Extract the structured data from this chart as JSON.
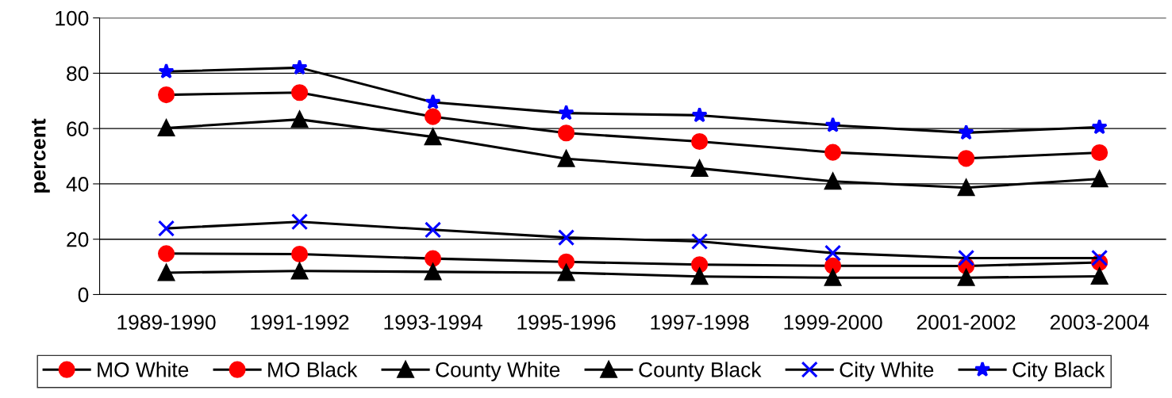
{
  "chart_data": {
    "type": "line",
    "ylabel": "percent",
    "categories": [
      "1989-1990",
      "1991-1992",
      "1993-1994",
      "1995-1996",
      "1997-1998",
      "1999-2000",
      "2001-2002",
      "2003-2004"
    ],
    "series": [
      {
        "name": "MO White",
        "color": "#ff0000",
        "marker": "circle",
        "values": [
          14.8,
          14.6,
          13.0,
          11.8,
          10.8,
          10.4,
          10.3,
          11.6
        ]
      },
      {
        "name": "MO Black",
        "color": "#ff0000",
        "marker": "circle",
        "values": [
          72.2,
          73.0,
          64.3,
          58.4,
          55.3,
          51.4,
          49.2,
          51.3
        ]
      },
      {
        "name": "County White",
        "color": "#000000",
        "marker": "triangle",
        "values": [
          7.9,
          8.5,
          8.2,
          7.9,
          6.5,
          6.1,
          6.1,
          6.6
        ]
      },
      {
        "name": "County Black",
        "color": "#000000",
        "marker": "triangle",
        "values": [
          60.2,
          63.3,
          57.0,
          49.1,
          45.6,
          40.9,
          38.6,
          41.8
        ]
      },
      {
        "name": "City White",
        "color": "#0000ff",
        "marker": "cross",
        "values": [
          23.9,
          26.3,
          23.4,
          20.6,
          19.2,
          15.0,
          13.2,
          13.2
        ]
      },
      {
        "name": "City Black",
        "color": "#0000ff",
        "marker": "star",
        "values": [
          80.6,
          82.0,
          69.5,
          65.6,
          64.8,
          61.2,
          58.5,
          60.5
        ]
      }
    ],
    "ylim": [
      0,
      100
    ],
    "yticks": [
      0,
      20,
      40,
      60,
      80,
      100
    ],
    "grid": "y",
    "legend": "bottom"
  }
}
